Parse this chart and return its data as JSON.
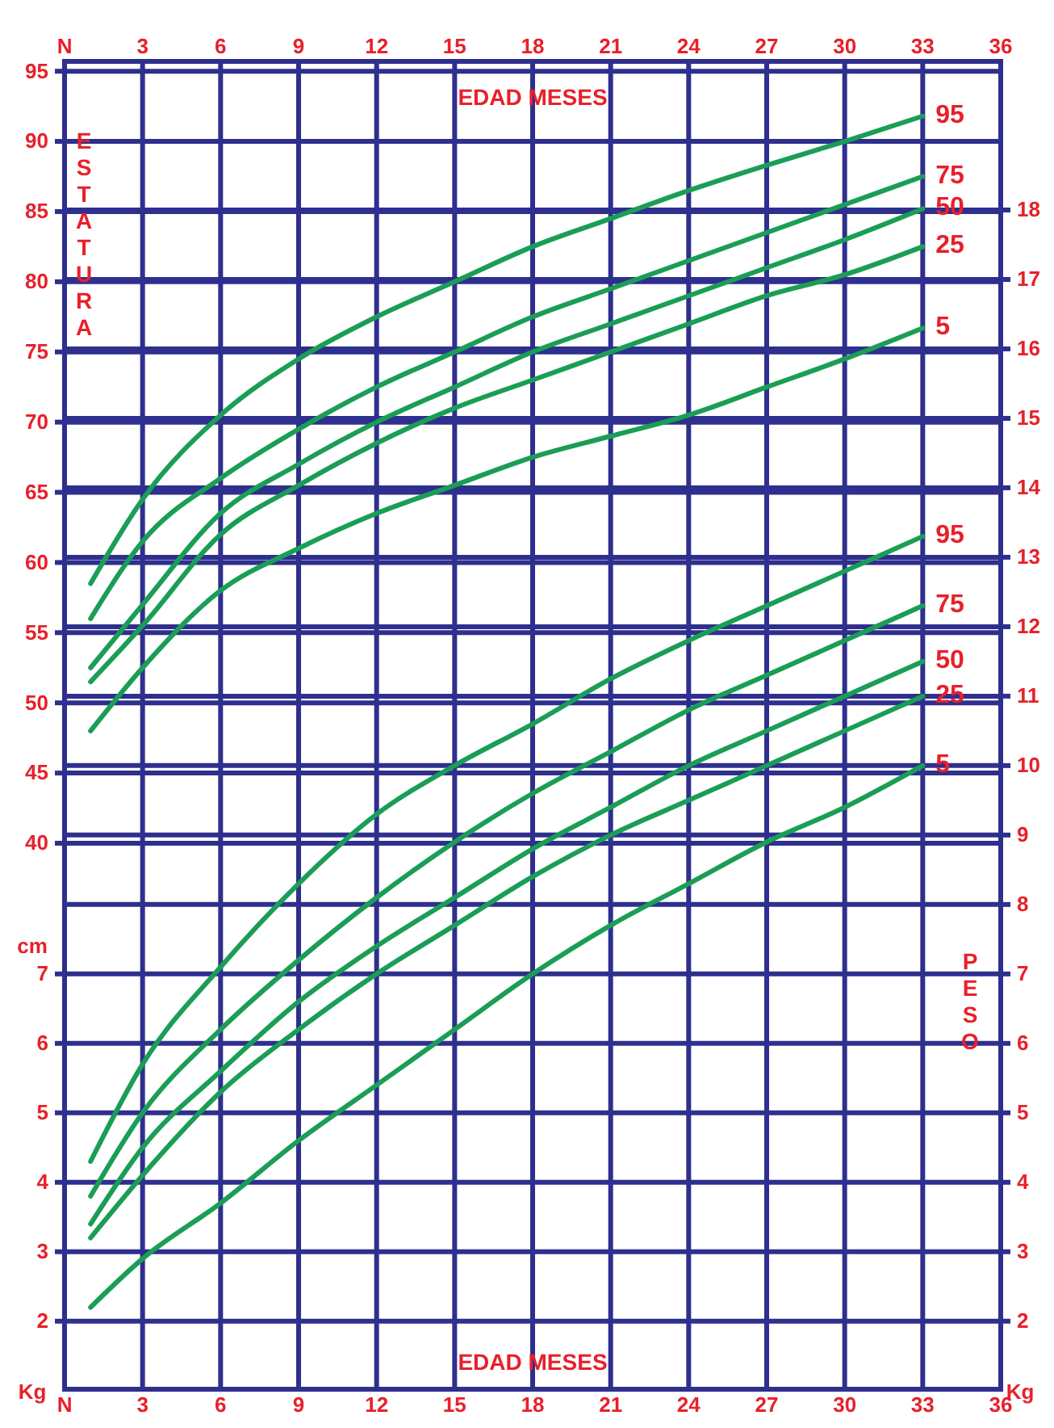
{
  "chart_data": {
    "type": "line",
    "xlabel": "EDAD MESES",
    "x2label": "EDAD MESES",
    "ylabel": "cm",
    "y2label": "Kg",
    "y3label": "Kg",
    "annotations": [
      "ESTATURA",
      "PESO"
    ],
    "x": [
      1,
      3,
      6,
      9,
      12,
      15,
      18,
      21,
      24,
      27,
      30,
      33
    ],
    "xlim": [
      0,
      36
    ],
    "xticks": [
      {
        "value": 0,
        "label": "N"
      },
      3,
      6,
      9,
      12,
      15,
      18,
      21,
      24,
      27,
      30,
      33,
      36
    ],
    "x2lim": [
      0,
      36
    ],
    "x2ticks": [
      {
        "value": 0,
        "label": "N"
      },
      3,
      6,
      9,
      12,
      15,
      18,
      21,
      24,
      27,
      30,
      33,
      36
    ],
    "ylim": [
      1.1,
      95.7
    ],
    "yticks": [
      40,
      45,
      50,
      55,
      60,
      65,
      70,
      75,
      80,
      85,
      90,
      95
    ],
    "y2lim": [
      1.02,
      20.14
    ],
    "y2ticks": [
      2,
      3,
      4,
      5,
      6,
      7,
      8,
      9,
      10,
      11,
      12,
      13,
      14,
      15,
      16,
      17,
      18
    ],
    "y3lim": [
      1.02,
      20.14
    ],
    "y3ticks": [
      2,
      3,
      4,
      5,
      6,
      7
    ],
    "grid": true,
    "legend": false,
    "marker": "none",
    "line_style": "solid",
    "series": [
      {
        "name": "95",
        "color": "#1a9e55",
        "values": [
          58.5,
          64.5,
          70.5,
          74.5,
          77.5,
          80,
          82.5,
          84.5,
          86.5,
          88.3,
          90,
          91.8
        ]
      },
      {
        "name": "75",
        "color": "#1a9e55",
        "values": [
          56,
          61.5,
          66,
          69.5,
          72.5,
          75,
          77.5,
          79.5,
          81.5,
          83.5,
          85.5,
          87.5
        ]
      },
      {
        "name": "50",
        "color": "#1a9e55",
        "values": [
          52.5,
          57,
          63.5,
          67,
          70,
          72.5,
          75,
          77,
          79,
          81,
          83,
          85.2
        ]
      },
      {
        "name": "25",
        "color": "#1a9e55",
        "values": [
          51.5,
          55.5,
          62,
          65.5,
          68.5,
          71,
          73,
          75,
          77,
          79,
          80.5,
          82.5
        ]
      },
      {
        "name": "5",
        "color": "#1a9e55",
        "values": [
          48,
          52.5,
          58,
          61,
          63.5,
          65.5,
          67.5,
          69,
          70.5,
          72.5,
          74.5,
          76.7
        ]
      },
      {
        "name": "95",
        "color": "#1a9e55",
        "axis": "y2",
        "values": [
          4.3,
          5.7,
          7.1,
          8.3,
          9.3,
          10,
          10.6,
          11.25,
          11.8,
          12.3,
          12.8,
          13.3
        ]
      },
      {
        "name": "75",
        "color": "#1a9e55",
        "axis": "y2",
        "values": [
          3.8,
          5,
          6.2,
          7.2,
          8.1,
          8.9,
          9.6,
          10.2,
          10.8,
          11.3,
          11.8,
          12.3
        ]
      },
      {
        "name": "50",
        "color": "#1a9e55",
        "axis": "y2",
        "values": [
          3.4,
          4.5,
          5.6,
          6.6,
          7.4,
          8.1,
          8.8,
          9.4,
          10,
          10.5,
          11,
          11.5
        ]
      },
      {
        "name": "25",
        "color": "#1a9e55",
        "axis": "y2",
        "values": [
          3.2,
          4.1,
          5.3,
          6.2,
          7,
          7.7,
          8.4,
          9,
          9.5,
          10,
          10.5,
          11
        ]
      },
      {
        "name": "5",
        "color": "#1a9e55",
        "axis": "y2",
        "values": [
          2.2,
          2.9,
          3.7,
          4.6,
          5.4,
          6.2,
          7,
          7.7,
          8.3,
          8.9,
          9.4,
          10
        ]
      }
    ]
  }
}
